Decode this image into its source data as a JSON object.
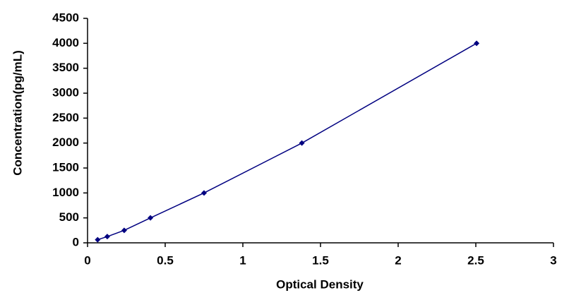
{
  "chart_data": {
    "type": "scatter",
    "line": true,
    "x_label": "Optical Density",
    "y_label": "Concentration(pg/mL)",
    "x": [
      0.065,
      0.127,
      0.236,
      0.405,
      0.75,
      1.38,
      2.505
    ],
    "values": [
      62.5,
      125,
      250,
      500,
      1000,
      2000,
      4000
    ],
    "color": "#000080",
    "xlim": [
      0,
      3
    ],
    "xticks": [
      0,
      0.5,
      1,
      1.5,
      2,
      2.5,
      3
    ],
    "ylim": [
      0,
      4500
    ],
    "yticks": [
      0,
      500,
      1000,
      1500,
      2000,
      2500,
      3000,
      3500,
      4000,
      4500
    ],
    "grid": false
  }
}
